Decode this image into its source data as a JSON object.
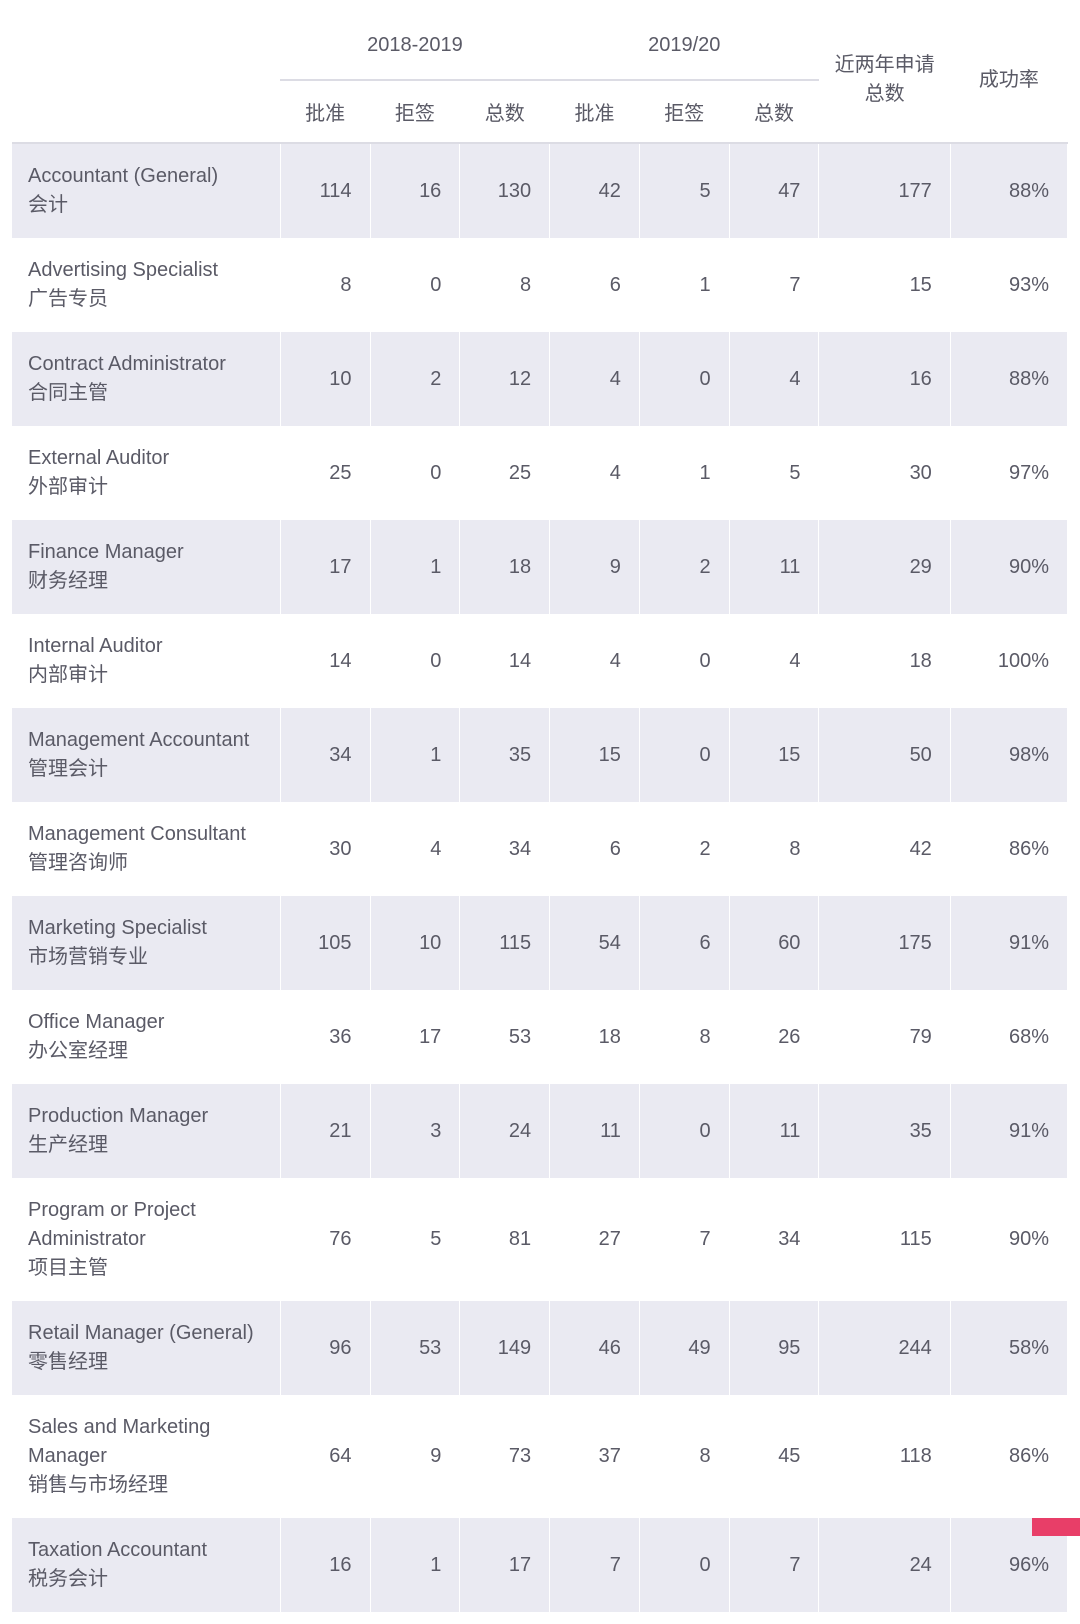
{
  "table": {
    "type": "table",
    "colors": {
      "row_odd_bg": "#eaeaf2",
      "row_even_bg": "#ffffff",
      "border": "#dcdce4",
      "text": "#5a5a66",
      "accent_corner": "#e83e68"
    },
    "font": {
      "body_size_pt": 15,
      "header_size_pt": 15
    },
    "header": {
      "period1": "2018-2019",
      "period2": "2019/20",
      "two_year_total": "近两年申请总数",
      "success_rate": "成功率",
      "approved": "批准",
      "rejected": "拒签",
      "total": "总数"
    },
    "rows": [
      {
        "name_en": "Accountant (General)",
        "name_cn": "会计",
        "p1_approved": 114,
        "p1_rejected": 16,
        "p1_total": 130,
        "p2_approved": 42,
        "p2_rejected": 5,
        "p2_total": 47,
        "two_year_total": 177,
        "success_rate": "88%"
      },
      {
        "name_en": "Advertising Specialist",
        "name_cn": "广告专员",
        "p1_approved": 8,
        "p1_rejected": 0,
        "p1_total": 8,
        "p2_approved": 6,
        "p2_rejected": 1,
        "p2_total": 7,
        "two_year_total": 15,
        "success_rate": "93%"
      },
      {
        "name_en": "Contract Administrator",
        "name_cn": "合同主管",
        "p1_approved": 10,
        "p1_rejected": 2,
        "p1_total": 12,
        "p2_approved": 4,
        "p2_rejected": 0,
        "p2_total": 4,
        "two_year_total": 16,
        "success_rate": "88%"
      },
      {
        "name_en": "External Auditor",
        "name_cn": "外部审计",
        "p1_approved": 25,
        "p1_rejected": 0,
        "p1_total": 25,
        "p2_approved": 4,
        "p2_rejected": 1,
        "p2_total": 5,
        "two_year_total": 30,
        "success_rate": "97%"
      },
      {
        "name_en": "Finance Manager",
        "name_cn": "财务经理",
        "p1_approved": 17,
        "p1_rejected": 1,
        "p1_total": 18,
        "p2_approved": 9,
        "p2_rejected": 2,
        "p2_total": 11,
        "two_year_total": 29,
        "success_rate": "90%"
      },
      {
        "name_en": "Internal Auditor",
        "name_cn": "内部审计",
        "p1_approved": 14,
        "p1_rejected": 0,
        "p1_total": 14,
        "p2_approved": 4,
        "p2_rejected": 0,
        "p2_total": 4,
        "two_year_total": 18,
        "success_rate": "100%"
      },
      {
        "name_en": "Management Accountant",
        "name_cn": "管理会计",
        "p1_approved": 34,
        "p1_rejected": 1,
        "p1_total": 35,
        "p2_approved": 15,
        "p2_rejected": 0,
        "p2_total": 15,
        "two_year_total": 50,
        "success_rate": "98%"
      },
      {
        "name_en": "Management Consultant",
        "name_cn": "管理咨询师",
        "p1_approved": 30,
        "p1_rejected": 4,
        "p1_total": 34,
        "p2_approved": 6,
        "p2_rejected": 2,
        "p2_total": 8,
        "two_year_total": 42,
        "success_rate": "86%"
      },
      {
        "name_en": "Marketing Specialist",
        "name_cn": "市场营销专业",
        "p1_approved": 105,
        "p1_rejected": 10,
        "p1_total": 115,
        "p2_approved": 54,
        "p2_rejected": 6,
        "p2_total": 60,
        "two_year_total": 175,
        "success_rate": "91%"
      },
      {
        "name_en": "Office Manager",
        "name_cn": "办公室经理",
        "p1_approved": 36,
        "p1_rejected": 17,
        "p1_total": 53,
        "p2_approved": 18,
        "p2_rejected": 8,
        "p2_total": 26,
        "two_year_total": 79,
        "success_rate": "68%"
      },
      {
        "name_en": "Production Manager",
        "name_cn": "生产经理",
        "p1_approved": 21,
        "p1_rejected": 3,
        "p1_total": 24,
        "p2_approved": 11,
        "p2_rejected": 0,
        "p2_total": 11,
        "two_year_total": 35,
        "success_rate": "91%"
      },
      {
        "name_en": "Program or Project Administrator",
        "name_cn": "项目主管",
        "p1_approved": 76,
        "p1_rejected": 5,
        "p1_total": 81,
        "p2_approved": 27,
        "p2_rejected": 7,
        "p2_total": 34,
        "two_year_total": 115,
        "success_rate": "90%"
      },
      {
        "name_en": "Retail Manager (General)",
        "name_cn": "零售经理",
        "p1_approved": 96,
        "p1_rejected": 53,
        "p1_total": 149,
        "p2_approved": 46,
        "p2_rejected": 49,
        "p2_total": 95,
        "two_year_total": 244,
        "success_rate": "58%"
      },
      {
        "name_en": "Sales and Marketing Manager",
        "name_cn": "销售与市场经理",
        "p1_approved": 64,
        "p1_rejected": 9,
        "p1_total": 73,
        "p2_approved": 37,
        "p2_rejected": 8,
        "p2_total": 45,
        "two_year_total": 118,
        "success_rate": "86%"
      },
      {
        "name_en": "Taxation Accountant",
        "name_cn": "税务会计",
        "p1_approved": 16,
        "p1_rejected": 1,
        "p1_total": 17,
        "p2_approved": 7,
        "p2_rejected": 0,
        "p2_total": 7,
        "two_year_total": 24,
        "success_rate": "96%"
      }
    ]
  }
}
